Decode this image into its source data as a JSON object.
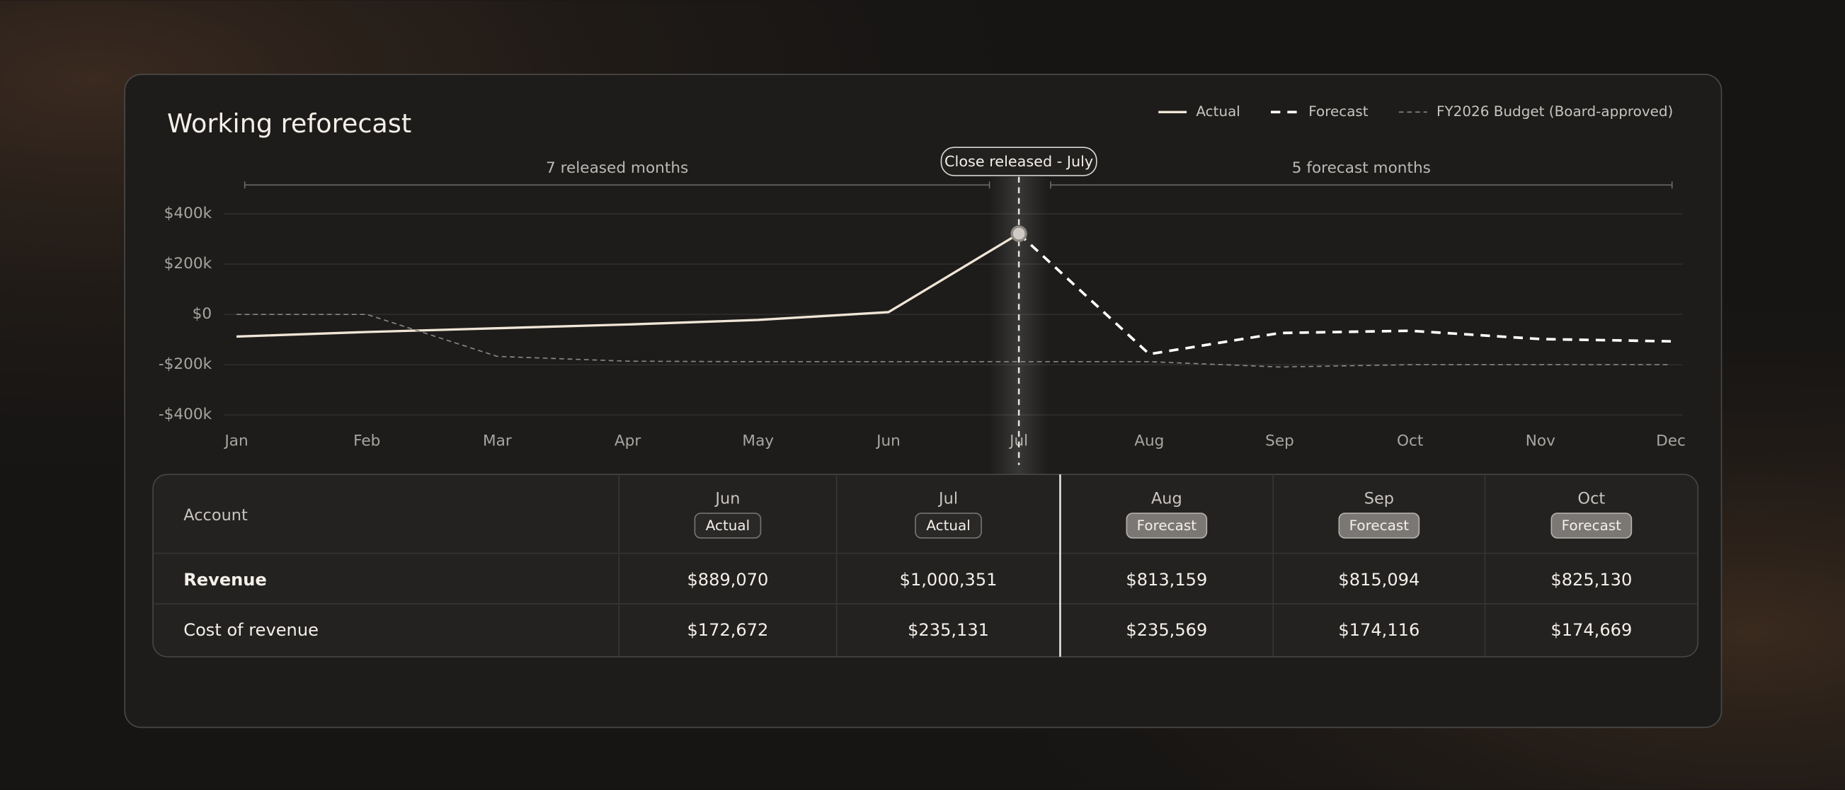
{
  "chart_data": {
    "type": "line",
    "title": "Working reforecast",
    "categories": [
      "Jan",
      "Feb",
      "Mar",
      "Apr",
      "May",
      "Jun",
      "Jul",
      "Aug",
      "Sep",
      "Oct",
      "Nov",
      "Dec"
    ],
    "series": [
      {
        "name": "Actual",
        "color": "#f0e6d6",
        "line_style": "solid",
        "values": [
          -88000,
          -70000,
          -55000,
          -40000,
          -22000,
          9000,
          321000,
          null,
          null,
          null,
          null,
          null
        ]
      },
      {
        "name": "Forecast",
        "color": "#ffffff",
        "line_style": "dashed",
        "values": [
          null,
          null,
          null,
          null,
          null,
          null,
          321000,
          -158000,
          -74000,
          -65000,
          -98000,
          -107000
        ]
      },
      {
        "name": "FY2026 Budget (Board-approved)",
        "color": "#8a8784",
        "line_style": "dotted",
        "values": [
          0,
          0,
          -167000,
          -186000,
          -188000,
          -188000,
          -188000,
          -188000,
          -209000,
          -200000,
          -200000,
          -200000
        ]
      }
    ],
    "ylim": [
      -400000,
      400000
    ],
    "yticks": [
      {
        "value": 400000,
        "label": "$400k"
      },
      {
        "value": 200000,
        "label": "$200k"
      },
      {
        "value": 0,
        "label": "$0"
      },
      {
        "value": -200000,
        "label": "-$200k"
      },
      {
        "value": -400000,
        "label": "-$400k"
      }
    ],
    "grid": true,
    "legend": "top-right",
    "annotations": {
      "released": "7 released months",
      "forecast": "5 forecast months",
      "marker": "Close released - July"
    }
  },
  "table": {
    "header": "Account",
    "columns": [
      {
        "month": "Jun",
        "status": "Actual"
      },
      {
        "month": "Jul",
        "status": "Actual"
      },
      {
        "month": "Aug",
        "status": "Forecast"
      },
      {
        "month": "Sep",
        "status": "Forecast"
      },
      {
        "month": "Oct",
        "status": "Forecast"
      }
    ],
    "rows": [
      [
        "Revenue",
        "$889,070",
        "$1,000,351",
        "$813,159",
        "$815,094",
        "$825,130"
      ],
      [
        "Cost of revenue",
        "$172,672",
        "$235,131",
        "$235,569",
        "$174,116",
        "$174,669"
      ]
    ]
  }
}
